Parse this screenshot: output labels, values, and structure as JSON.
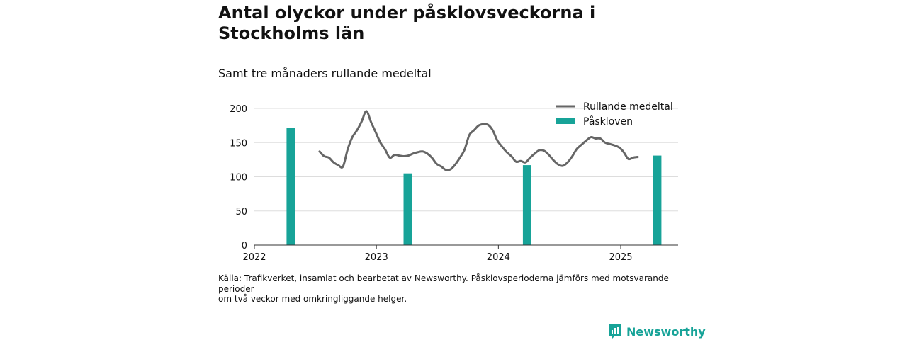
{
  "title": "Antal olyckor under påsklovsveckorna i Stockholms län",
  "subtitle": "Samt tre månaders rullande medeltal",
  "source_lines": [
    "Källa: Trafikverket, insamlat och bearbetat av Newsworthy. Påsklovsperioderna jämförs med motsvarande",
    "perioder",
    "om två veckor med omkringliggande helger."
  ],
  "brand": {
    "name": "Newsworthy",
    "icon": "newsworthy-logo-icon",
    "color": "#17a398"
  },
  "colors": {
    "bar": "#17a398",
    "line": "#666666",
    "grid": "#dddddd",
    "axis": "#333333"
  },
  "chart_data": {
    "type": "bar+line",
    "title": "Antal olyckor under påsklovsveckorna i Stockholms län",
    "subtitle": "Samt tre månaders rullande medeltal",
    "xlabel": "",
    "ylabel": "",
    "x_ticks": [
      "2022",
      "2023",
      "2024",
      "2025"
    ],
    "x_range": [
      "2022-01-01",
      "2025-06-15"
    ],
    "y_ticks": [
      0,
      50,
      100,
      150,
      200
    ],
    "ylim": [
      0,
      200
    ],
    "grid": true,
    "legend": {
      "position": "top-right",
      "entries": [
        "Rullande medeltal",
        "Påskloven"
      ]
    },
    "series": [
      {
        "name": "Påskloven",
        "type": "bar",
        "points": [
          {
            "date": "2022-04-20",
            "value": 172
          },
          {
            "date": "2023-04-05",
            "value": 105
          },
          {
            "date": "2024-03-27",
            "value": 117
          },
          {
            "date": "2025-04-20",
            "value": 131
          }
        ]
      },
      {
        "name": "Rullande medeltal",
        "type": "line",
        "points": [
          [
            "2022-07-15",
            137
          ],
          [
            "2022-07-29",
            130
          ],
          [
            "2022-08-12",
            128
          ],
          [
            "2022-08-26",
            121
          ],
          [
            "2022-09-09",
            117
          ],
          [
            "2022-09-23",
            115
          ],
          [
            "2022-10-07",
            140
          ],
          [
            "2022-10-21",
            158
          ],
          [
            "2022-11-04",
            168
          ],
          [
            "2022-11-18",
            181
          ],
          [
            "2022-12-02",
            196
          ],
          [
            "2022-12-16",
            180
          ],
          [
            "2022-12-30",
            165
          ],
          [
            "2023-01-13",
            150
          ],
          [
            "2023-01-27",
            140
          ],
          [
            "2023-02-10",
            128
          ],
          [
            "2023-02-24",
            132
          ],
          [
            "2023-03-10",
            131
          ],
          [
            "2023-03-24",
            130
          ],
          [
            "2023-04-07",
            131
          ],
          [
            "2023-04-21",
            134
          ],
          [
            "2023-05-05",
            136
          ],
          [
            "2023-05-19",
            137
          ],
          [
            "2023-06-02",
            134
          ],
          [
            "2023-06-16",
            128
          ],
          [
            "2023-06-30",
            119
          ],
          [
            "2023-07-14",
            115
          ],
          [
            "2023-07-28",
            110
          ],
          [
            "2023-08-11",
            111
          ],
          [
            "2023-08-25",
            118
          ],
          [
            "2023-09-08",
            128
          ],
          [
            "2023-09-22",
            140
          ],
          [
            "2023-10-06",
            161
          ],
          [
            "2023-10-20",
            168
          ],
          [
            "2023-11-03",
            175
          ],
          [
            "2023-11-17",
            177
          ],
          [
            "2023-12-01",
            176
          ],
          [
            "2023-12-15",
            168
          ],
          [
            "2023-12-29",
            153
          ],
          [
            "2024-01-12",
            144
          ],
          [
            "2024-01-26",
            136
          ],
          [
            "2024-02-09",
            130
          ],
          [
            "2024-02-23",
            122
          ],
          [
            "2024-03-08",
            123
          ],
          [
            "2024-03-22",
            121
          ],
          [
            "2024-04-05",
            128
          ],
          [
            "2024-04-19",
            134
          ],
          [
            "2024-05-03",
            139
          ],
          [
            "2024-05-17",
            138
          ],
          [
            "2024-05-31",
            132
          ],
          [
            "2024-06-14",
            124
          ],
          [
            "2024-06-28",
            118
          ],
          [
            "2024-07-12",
            116
          ],
          [
            "2024-07-26",
            121
          ],
          [
            "2024-08-09",
            130
          ],
          [
            "2024-08-23",
            141
          ],
          [
            "2024-09-06",
            147
          ],
          [
            "2024-09-20",
            153
          ],
          [
            "2024-10-04",
            158
          ],
          [
            "2024-10-18",
            156
          ],
          [
            "2024-11-01",
            156
          ],
          [
            "2024-11-15",
            150
          ],
          [
            "2024-11-29",
            148
          ],
          [
            "2024-12-13",
            146
          ],
          [
            "2024-12-27",
            143
          ],
          [
            "2025-01-10",
            136
          ],
          [
            "2025-01-24",
            126
          ],
          [
            "2025-02-07",
            128
          ],
          [
            "2025-02-21",
            129
          ]
        ]
      }
    ]
  }
}
